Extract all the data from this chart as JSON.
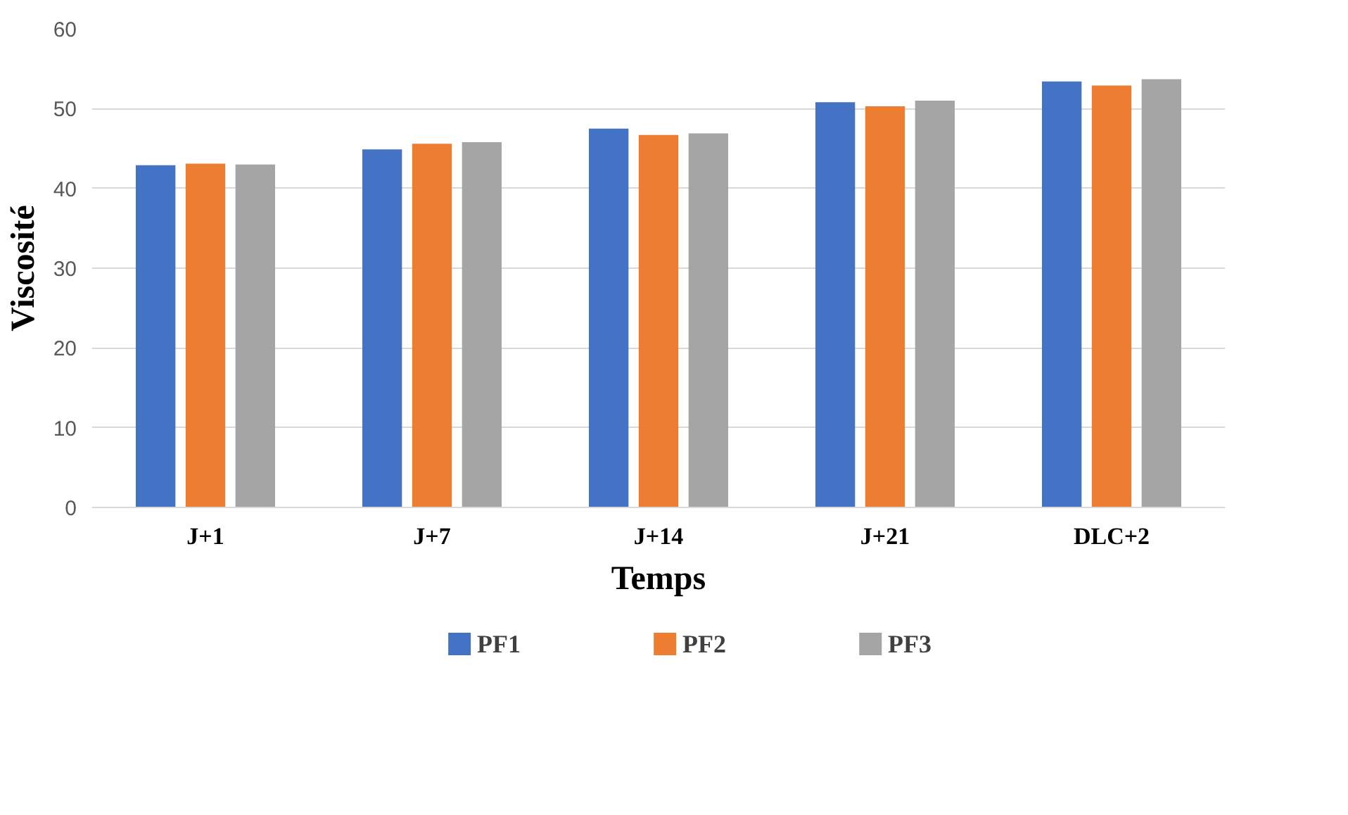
{
  "chart_data": {
    "type": "bar",
    "xlabel": "Temps",
    "ylabel": "Viscosité",
    "categories": [
      "J+1",
      "J+7",
      "J+14",
      "J+21",
      "DLC+2"
    ],
    "series": [
      {
        "name": "PF1",
        "color": "#4472c4",
        "values": [
          42.9,
          44.9,
          47.5,
          50.8,
          53.4
        ]
      },
      {
        "name": "PF2",
        "color": "#ed7d31",
        "values": [
          43.1,
          45.6,
          46.7,
          50.3,
          52.9
        ]
      },
      {
        "name": "PF3",
        "color": "#a5a5a5",
        "values": [
          43.0,
          45.8,
          46.9,
          51.0,
          53.7
        ]
      }
    ],
    "ylim": [
      0,
      60
    ],
    "yticks": [
      0,
      10,
      20,
      30,
      40,
      50,
      60
    ],
    "grid": "y",
    "legend": "bottom"
  }
}
